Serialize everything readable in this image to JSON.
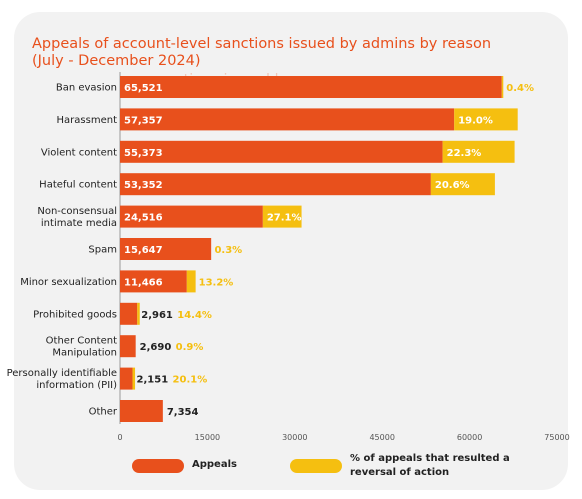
{
  "chart_data": {
    "type": "bar",
    "title": "Appeals of account-level sanctions issued by admins by reason (July - December 2024)",
    "categories": [
      "Ban evasion",
      "Harassment",
      "Violent content",
      "Hateful content",
      "Non-consensual intimate media",
      "Spam",
      "Minor sexualization",
      "Prohibited goods",
      "Other Content Manipulation",
      "Personally identifiable information (PII)",
      "Other"
    ],
    "series": [
      {
        "name": "Appeals",
        "color": "#e8501c",
        "values": [
          65521,
          57357,
          55373,
          53352,
          24516,
          15647,
          11466,
          2961,
          2690,
          2151,
          7354
        ]
      },
      {
        "name": "% of appeals that resulted a reversal of action",
        "color": "#f5bf10",
        "values": [
          0.4,
          19.0,
          22.3,
          20.6,
          27.1,
          0.3,
          13.2,
          14.4,
          0.9,
          20.1,
          null
        ]
      }
    ],
    "value_labels": [
      "65,521",
      "57,357",
      "55,373",
      "53,352",
      "24,516",
      "15,647",
      "11,466",
      "2,961",
      "2,690",
      "2,151",
      "7,354"
    ],
    "percent_labels": [
      "0.4%",
      "19.0%",
      "22.3%",
      "20.6%",
      "27.1%",
      "0.3%",
      "13.2%",
      "14.4%",
      "0.9%",
      "20.1%",
      ""
    ],
    "xlim": [
      0,
      75000
    ],
    "xticks": [
      0,
      15000,
      30000,
      45000,
      60000,
      75000
    ],
    "xtick_labels": [
      "0",
      "15000",
      "30000",
      "45000",
      "60000",
      "75000"
    ],
    "grid": false,
    "legend_position": "bottom",
    "colors": {
      "appeals": "#e8501c",
      "reversal": "#f5bf10",
      "title": "#e8501c"
    }
  },
  "legend": {
    "appeals_label": "Appeals",
    "reversal_label": "% of appeals that resulted a reversal of action"
  },
  "ghost_text": "sanctions issued by"
}
